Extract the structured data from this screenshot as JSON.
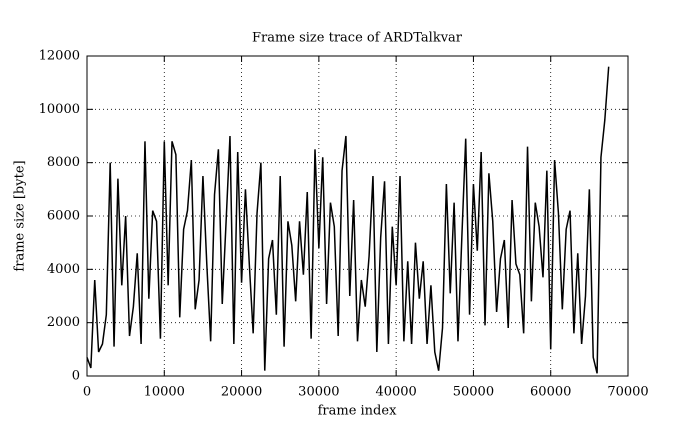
{
  "chart_data": {
    "type": "line",
    "title": "Frame size trace of ARDTalkvar",
    "xlabel": "frame index",
    "ylabel": "frame size [byte]",
    "x": [
      0,
      500,
      1000,
      1500,
      2000,
      2500,
      3000,
      3500,
      4000,
      4500,
      5000,
      5500,
      6000,
      6500,
      7000,
      7500,
      8000,
      8500,
      9000,
      9500,
      10000,
      10500,
      11000,
      11500,
      12000,
      12500,
      13000,
      13500,
      14000,
      14500,
      15000,
      15500,
      16000,
      16500,
      17000,
      17500,
      18000,
      18500,
      19000,
      19500,
      20000,
      20500,
      21000,
      21500,
      22000,
      22500,
      23000,
      23500,
      24000,
      24500,
      25000,
      25500,
      26000,
      26500,
      27000,
      27500,
      28000,
      28500,
      29000,
      29500,
      30000,
      30500,
      31000,
      31500,
      32000,
      32500,
      33000,
      33500,
      34000,
      34500,
      35000,
      35500,
      36000,
      36500,
      37000,
      37500,
      38000,
      38500,
      39000,
      39500,
      40000,
      40500,
      41000,
      41500,
      42000,
      42500,
      43000,
      43500,
      44000,
      44500,
      45000,
      45500,
      46000,
      46500,
      47000,
      47500,
      48000,
      48500,
      49000,
      49500,
      50000,
      50500,
      51000,
      51500,
      52000,
      52500,
      53000,
      53500,
      54000,
      54500,
      55000,
      55500,
      56000,
      56500,
      57000,
      57500,
      58000,
      58500,
      59000,
      59500,
      60000,
      60500,
      61000,
      61500,
      62000,
      62500,
      63000,
      63500,
      64000,
      64500,
      65000,
      65500,
      66000,
      66500,
      67000,
      67500
    ],
    "series": [
      {
        "name": "frame size",
        "color": "#000000",
        "values": [
          700,
          300,
          3600,
          900,
          1200,
          2300,
          8000,
          1100,
          7400,
          3400,
          6000,
          1500,
          2600,
          4600,
          1200,
          8800,
          2900,
          6200,
          5800,
          1400,
          8800,
          3400,
          8800,
          8300,
          2200,
          5500,
          6200,
          8100,
          2500,
          3600,
          7500,
          4200,
          1300,
          6800,
          8500,
          2700,
          5800,
          9000,
          1200,
          8400,
          3500,
          7000,
          4200,
          1600,
          6100,
          8000,
          200,
          4400,
          5100,
          2300,
          7500,
          1100,
          5800,
          4900,
          2800,
          5800,
          3800,
          6900,
          1400,
          8500,
          4800,
          8200,
          2700,
          6500,
          5600,
          1500,
          7700,
          9000,
          3000,
          6600,
          1300,
          3600,
          2600,
          4500,
          7500,
          900,
          5200,
          7300,
          1200,
          5600,
          3400,
          7500,
          1300,
          4300,
          1200,
          5000,
          2900,
          4300,
          1200,
          3400,
          900,
          200,
          1800,
          7200,
          3100,
          6500,
          1300,
          5200,
          8900,
          2300,
          7200,
          4700,
          8400,
          1900,
          7600,
          5800,
          2400,
          4400,
          5100,
          1800,
          6600,
          4200,
          3800,
          1600,
          8600,
          2800,
          6500,
          5600,
          3700,
          7700,
          1000,
          8100,
          6100,
          2500,
          5500,
          6200,
          1600,
          4600,
          1200,
          3000,
          7000,
          700,
          100,
          8200,
          9600,
          11600
        ]
      }
    ],
    "xlim": [
      0,
      70000
    ],
    "ylim": [
      0,
      12000
    ],
    "xticks": [
      0,
      10000,
      20000,
      30000,
      40000,
      50000,
      60000,
      70000
    ],
    "yticks": [
      0,
      2000,
      4000,
      6000,
      8000,
      10000,
      12000
    ],
    "grid": true
  }
}
